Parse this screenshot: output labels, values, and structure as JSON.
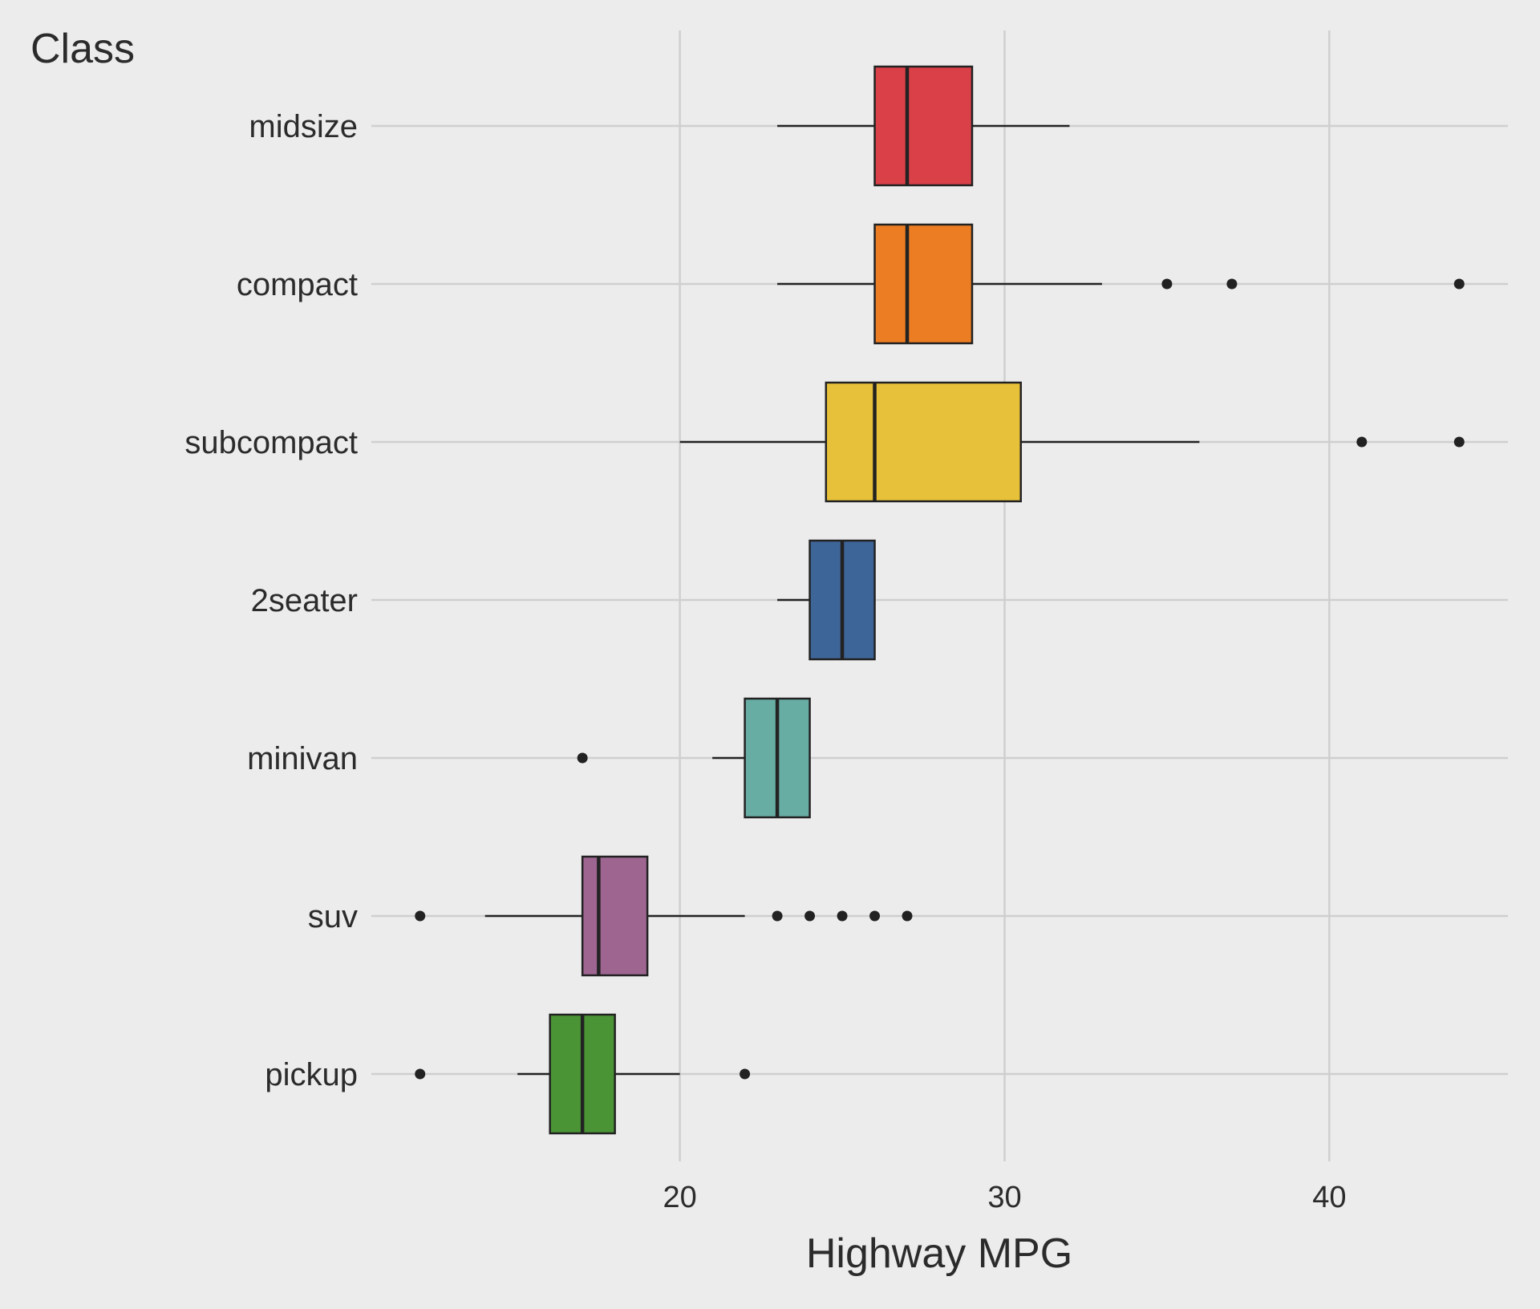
{
  "chart_data": {
    "type": "boxplot",
    "orientation": "horizontal",
    "ylabel": "Class",
    "xlabel": "Highway MPG",
    "xlim": [
      10.5,
      45.5
    ],
    "xticks": [
      20,
      30,
      40
    ],
    "grid": true,
    "legend": "none",
    "background": "#ececec",
    "grid_color": "#cfcfcf",
    "categories": [
      "midsize",
      "compact",
      "subcompact",
      "2seater",
      "minivan",
      "suv",
      "pickup"
    ],
    "boxes": [
      {
        "category": "midsize",
        "color": "#d94048",
        "whisker_low": 23,
        "q1": 26,
        "median": 27,
        "q3": 29,
        "whisker_high": 32,
        "outliers": []
      },
      {
        "category": "compact",
        "color": "#ed7d22",
        "whisker_low": 23,
        "q1": 26,
        "median": 27,
        "q3": 29,
        "whisker_high": 33,
        "outliers": [
          35,
          37,
          44
        ]
      },
      {
        "category": "subcompact",
        "color": "#e8c13a",
        "whisker_low": 20,
        "q1": 24.5,
        "median": 26,
        "q3": 30.5,
        "whisker_high": 36,
        "outliers": [
          41,
          44
        ]
      },
      {
        "category": "2seater",
        "color": "#3e6597",
        "whisker_low": 23,
        "q1": 24,
        "median": 25,
        "q3": 26,
        "whisker_high": 26,
        "outliers": []
      },
      {
        "category": "minivan",
        "color": "#68ada4",
        "whisker_low": 21,
        "q1": 22,
        "median": 23,
        "q3": 24,
        "whisker_high": 24,
        "outliers": [
          17
        ]
      },
      {
        "category": "suv",
        "color": "#9e6591",
        "whisker_low": 14,
        "q1": 17,
        "median": 17.5,
        "q3": 19,
        "whisker_high": 22,
        "outliers": [
          12,
          23,
          24,
          25,
          26,
          27
        ]
      },
      {
        "category": "pickup",
        "color": "#4a9436",
        "whisker_low": 15,
        "q1": 16,
        "median": 17,
        "q3": 18,
        "whisker_high": 20,
        "outliers": [
          12,
          22
        ]
      }
    ]
  }
}
